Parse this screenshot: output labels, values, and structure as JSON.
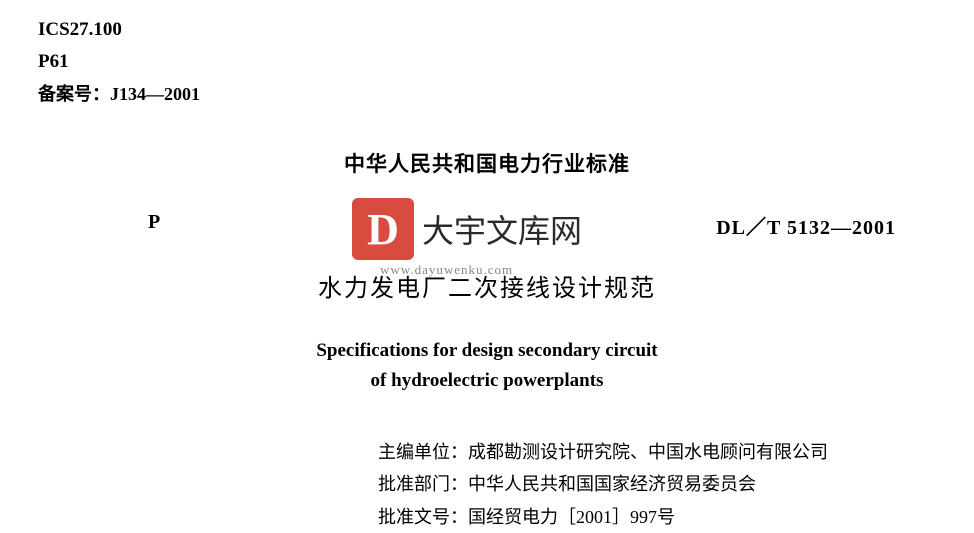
{
  "header": {
    "ics": "ICS27.100",
    "p_class": "P61",
    "filing": "备案号：J134—2001"
  },
  "heading": "中华人民共和国电力行业标准",
  "standard_row": {
    "p_mark": "P",
    "code": "DL／T  5132—2001"
  },
  "watermark": {
    "logo_letter": "D",
    "text": "大宇文库网",
    "url": "www.dayuwenku.com",
    "logo_bg": "#d94a3f",
    "logo_fg": "#ffffff"
  },
  "title_cn": "水力发电厂二次接线设计规范",
  "title_en_line1": "Specifications for design secondary circuit",
  "title_en_line2": "of hydroelectric powerplants",
  "meta": {
    "editor_label": "主编单位：",
    "editor_value": "成都勘测设计研究院、中国水电顾问有限公司",
    "approve_dept_label": "批准部门：",
    "approve_dept_value": "中华人民共和国国家经济贸易委员会",
    "approve_doc_label": "批准文号：",
    "approve_doc_value": "国经贸电力［2001］997号"
  },
  "colors": {
    "page_bg": "#ffffff",
    "text": "#000000",
    "watermark_url": "#888888"
  },
  "typography": {
    "header_fontsize": 19,
    "heading_fontsize": 21,
    "code_fontsize": 20,
    "cn_title_fontsize": 24,
    "en_title_fontsize": 19,
    "meta_fontsize": 18,
    "watermark_text_fontsize": 32
  }
}
